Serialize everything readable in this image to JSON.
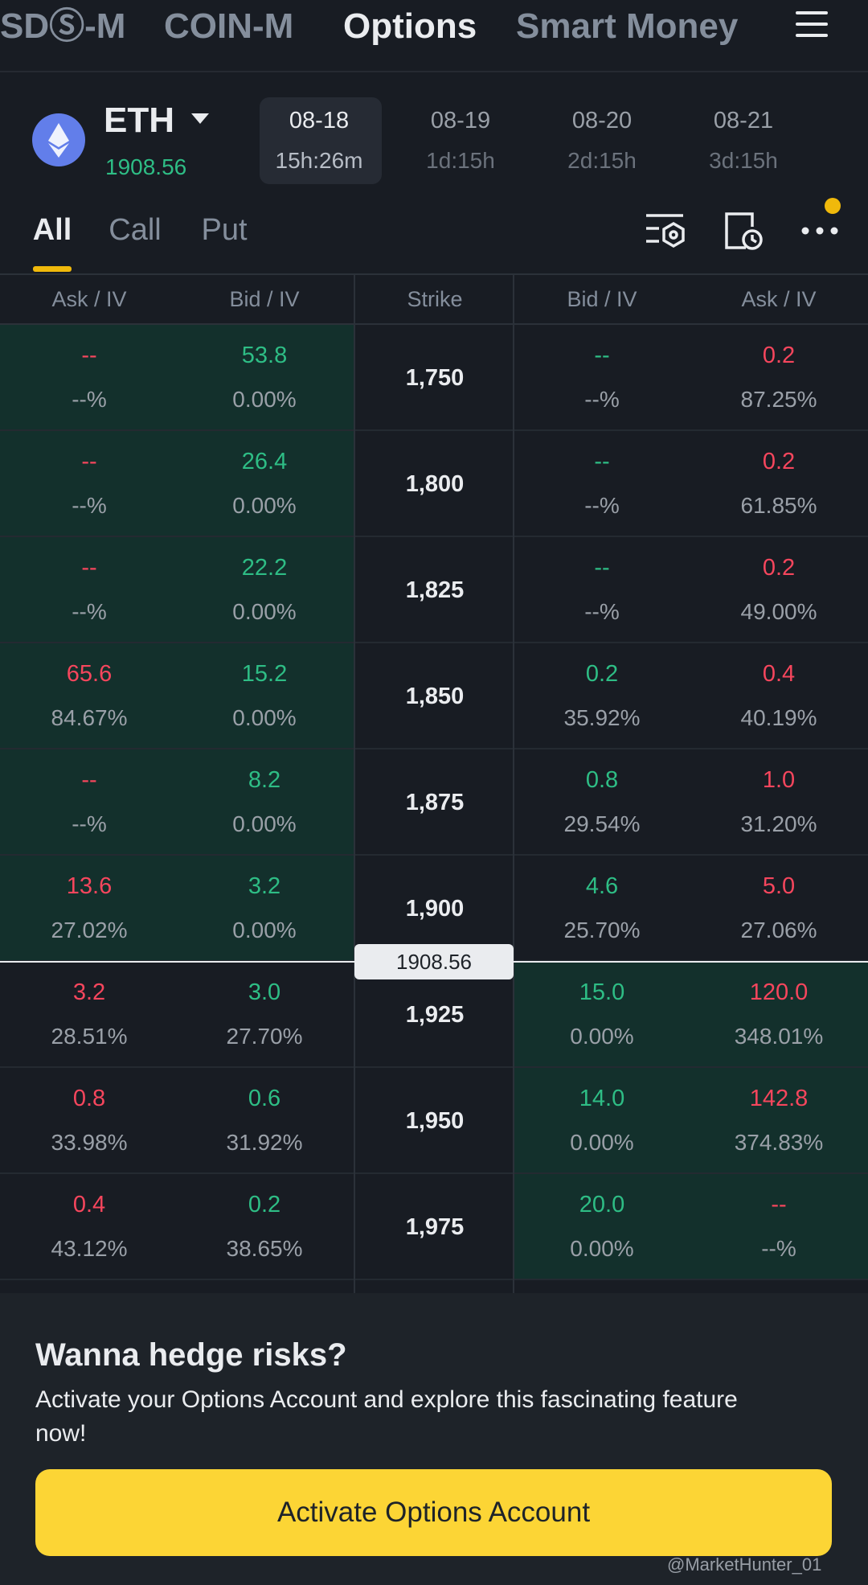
{
  "nav": [
    "SDⓈ-M",
    "COIN-M",
    "Options",
    "Smart Money"
  ],
  "asset": {
    "symbol": "ETH",
    "price": "1908.56"
  },
  "expiries": [
    {
      "date": "08-18",
      "countdown": "15h:26m"
    },
    {
      "date": "08-19",
      "countdown": "1d:15h"
    },
    {
      "date": "08-20",
      "countdown": "2d:15h"
    },
    {
      "date": "08-21",
      "countdown": "3d:15h"
    }
  ],
  "filters": [
    "All",
    "Call",
    "Put"
  ],
  "table": {
    "headers": [
      "Ask / IV",
      "Bid / IV",
      "Strike",
      "Bid / IV",
      "Ask / IV"
    ],
    "index_price": "1908.56",
    "rows": [
      {
        "strike": "1,750",
        "call_ask": "--",
        "call_ask_iv": "--%",
        "call_bid": "53.8",
        "call_bid_iv": "0.00%",
        "put_bid": "--",
        "put_bid_iv": "--%",
        "put_ask": "0.2",
        "put_ask_iv": "87.25%"
      },
      {
        "strike": "1,800",
        "call_ask": "--",
        "call_ask_iv": "--%",
        "call_bid": "26.4",
        "call_bid_iv": "0.00%",
        "put_bid": "--",
        "put_bid_iv": "--%",
        "put_ask": "0.2",
        "put_ask_iv": "61.85%"
      },
      {
        "strike": "1,825",
        "call_ask": "--",
        "call_ask_iv": "--%",
        "call_bid": "22.2",
        "call_bid_iv": "0.00%",
        "put_bid": "--",
        "put_bid_iv": "--%",
        "put_ask": "0.2",
        "put_ask_iv": "49.00%"
      },
      {
        "strike": "1,850",
        "call_ask": "65.6",
        "call_ask_iv": "84.67%",
        "call_bid": "15.2",
        "call_bid_iv": "0.00%",
        "put_bid": "0.2",
        "put_bid_iv": "35.92%",
        "put_ask": "0.4",
        "put_ask_iv": "40.19%"
      },
      {
        "strike": "1,875",
        "call_ask": "--",
        "call_ask_iv": "--%",
        "call_bid": "8.2",
        "call_bid_iv": "0.00%",
        "put_bid": "0.8",
        "put_bid_iv": "29.54%",
        "put_ask": "1.0",
        "put_ask_iv": "31.20%"
      },
      {
        "strike": "1,900",
        "call_ask": "13.6",
        "call_ask_iv": "27.02%",
        "call_bid": "3.2",
        "call_bid_iv": "0.00%",
        "put_bid": "4.6",
        "put_bid_iv": "25.70%",
        "put_ask": "5.0",
        "put_ask_iv": "27.06%"
      },
      {
        "strike": "1,925",
        "call_ask": "3.2",
        "call_ask_iv": "28.51%",
        "call_bid": "3.0",
        "call_bid_iv": "27.70%",
        "put_bid": "15.0",
        "put_bid_iv": "0.00%",
        "put_ask": "120.0",
        "put_ask_iv": "348.01%"
      },
      {
        "strike": "1,950",
        "call_ask": "0.8",
        "call_ask_iv": "33.98%",
        "call_bid": "0.6",
        "call_bid_iv": "31.92%",
        "put_bid": "14.0",
        "put_bid_iv": "0.00%",
        "put_ask": "142.8",
        "put_ask_iv": "374.83%"
      },
      {
        "strike": "1,975",
        "call_ask": "0.4",
        "call_ask_iv": "43.12%",
        "call_bid": "0.2",
        "call_bid_iv": "38.65%",
        "put_bid": "20.0",
        "put_bid_iv": "0.00%",
        "put_ask": "--",
        "put_ask_iv": "--%"
      }
    ]
  },
  "promo": {
    "title": "Wanna hedge risks?",
    "body": "Activate your Options Account and explore this fascinating feature now!",
    "button": "Activate Options Account"
  },
  "watermark": "@MarketHunter_01"
}
